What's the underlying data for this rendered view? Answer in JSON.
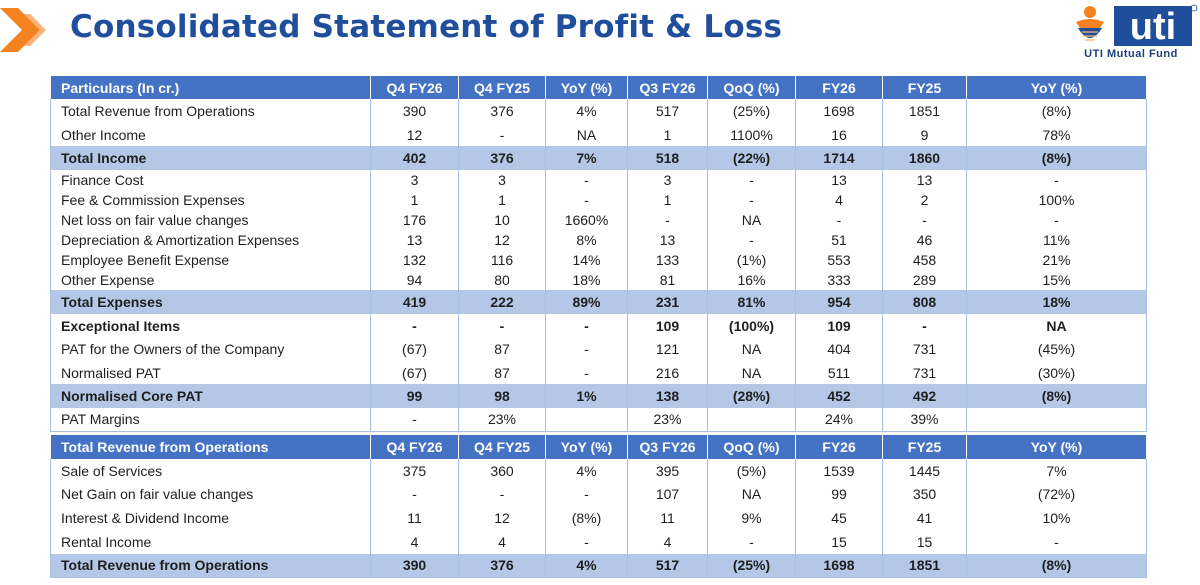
{
  "header": {
    "title": "Consolidated Statement of Profit & Loss",
    "logo_text": "uti",
    "logo_caption": "UTI Mutual Fund"
  },
  "colors": {
    "title": "#1f4e9c",
    "header_bg": "#4472c4",
    "total_bg": "#b4c7e7",
    "chevron": "#f58220"
  },
  "pl_table": {
    "headers": [
      "Particulars (In cr.)",
      "Q4 FY26",
      "Q4 FY25",
      "YoY (%)",
      "Q3 FY26",
      "QoQ (%)",
      "FY26",
      "FY25",
      "YoY (%)"
    ],
    "rows": [
      {
        "cells": [
          "Total Revenue from Operations",
          "390",
          "376",
          "4%",
          "517",
          "(25%)",
          "1698",
          "1851",
          "(8%)"
        ]
      },
      {
        "cells": [
          "Other Income",
          "12",
          "-",
          "NA",
          "1",
          "1100%",
          "16",
          "9",
          "78%"
        ]
      },
      {
        "cells": [
          "Total Income",
          "402",
          "376",
          "7%",
          "518",
          "(22%)",
          "1714",
          "1860",
          "(8%)"
        ],
        "style": "total"
      },
      {
        "cells": [
          "Finance Cost",
          "3",
          "3",
          "-",
          "3",
          "-",
          "13",
          "13",
          "-"
        ]
      },
      {
        "cells": [
          "Fee & Commission Expenses",
          "1",
          "1",
          "-",
          "1",
          "-",
          "4",
          "2",
          "100%"
        ]
      },
      {
        "cells": [
          "Net loss on fair value changes",
          "176",
          "10",
          "1660%",
          "-",
          "NA",
          "-",
          "-",
          "-"
        ]
      },
      {
        "cells": [
          "Depreciation & Amortization Expenses",
          "13",
          "12",
          "8%",
          "13",
          "-",
          "51",
          "46",
          "11%"
        ]
      },
      {
        "cells": [
          "Employee Benefit Expense",
          "132",
          "116",
          "14%",
          "133",
          "(1%)",
          "553",
          "458",
          "21%"
        ]
      },
      {
        "cells": [
          "Other Expense",
          "94",
          "80",
          "18%",
          "81",
          "16%",
          "333",
          "289",
          "15%"
        ]
      },
      {
        "cells": [
          "Total Expenses",
          "419",
          "222",
          "89%",
          "231",
          "81%",
          "954",
          "808",
          "18%"
        ],
        "style": "total"
      },
      {
        "cells": [
          "Exceptional Items",
          "-",
          "-",
          "-",
          "109",
          "(100%)",
          "109",
          "-",
          "NA"
        ],
        "style": "bold"
      },
      {
        "cells": [
          "PAT for the Owners of the Company",
          "(67)",
          "87",
          "-",
          "121",
          "NA",
          "404",
          "731",
          "(45%)"
        ]
      },
      {
        "cells": [
          "Normalised PAT",
          "(67)",
          "87",
          "-",
          "216",
          "NA",
          "511",
          "731",
          "(30%)"
        ]
      },
      {
        "cells": [
          "Normalised Core PAT",
          "99",
          "98",
          "1%",
          "138",
          "(28%)",
          "452",
          "492",
          "(8%)"
        ],
        "style": "total"
      },
      {
        "cells": [
          "PAT Margins",
          "-",
          "23%",
          "",
          "23%",
          "",
          "24%",
          "39%",
          ""
        ]
      }
    ]
  },
  "revenue_table": {
    "headers": [
      "Total Revenue from Operations",
      "Q4 FY26",
      "Q4 FY25",
      "YoY (%)",
      "Q3 FY26",
      "QoQ (%)",
      "FY26",
      "FY25",
      "YoY (%)"
    ],
    "rows": [
      {
        "cells": [
          "Sale of Services",
          "375",
          "360",
          "4%",
          "395",
          "(5%)",
          "1539",
          "1445",
          "7%"
        ]
      },
      {
        "cells": [
          "Net Gain on fair value changes",
          "-",
          "-",
          "-",
          "107",
          "NA",
          "99",
          "350",
          "(72%)"
        ]
      },
      {
        "cells": [
          "Interest & Dividend Income",
          "11",
          "12",
          "(8%)",
          "11",
          "9%",
          "45",
          "41",
          "10%"
        ]
      },
      {
        "cells": [
          "Rental Income",
          "4",
          "4",
          "-",
          "4",
          "-",
          "15",
          "15",
          "-"
        ]
      },
      {
        "cells": [
          "Total Revenue from Operations",
          "390",
          "376",
          "4%",
          "517",
          "(25%)",
          "1698",
          "1851",
          "(8%)"
        ],
        "style": "total"
      }
    ]
  }
}
